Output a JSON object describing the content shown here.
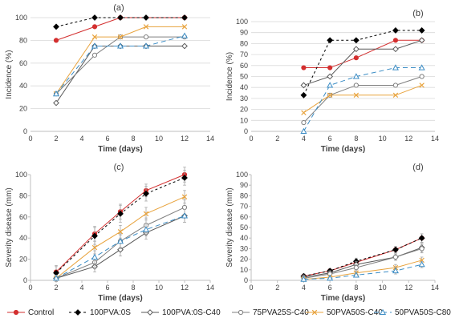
{
  "series_styles": [
    {
      "name": "Control",
      "color": "#d32f2f",
      "dash": "",
      "marker": "circle-filled"
    },
    {
      "name": "100PVA:0S",
      "color": "#000000",
      "dash": "3,3",
      "marker": "diamond-filled"
    },
    {
      "name": "100PVA:0S-C40",
      "color": "#595959",
      "dash": "",
      "marker": "diamond-open"
    },
    {
      "name": "75PVA25S-C40",
      "color": "#7f7f7f",
      "dash": "",
      "marker": "circle-open"
    },
    {
      "name": "50PVA50S-C40",
      "color": "#e8a33d",
      "dash": "",
      "marker": "x"
    },
    {
      "name": "50PVA50S-C80",
      "color": "#3c8dc5",
      "dash": "6,4",
      "marker": "triangle-open"
    }
  ],
  "chart_data": [
    {
      "type": "line",
      "label": "(a)",
      "xlabel": "Time (days)",
      "ylabel": "Incidence (%)",
      "xlim": [
        0,
        14
      ],
      "ylim": [
        0,
        100
      ],
      "xticks": [
        0,
        2,
        4,
        6,
        8,
        10,
        12,
        14
      ],
      "yticks": [
        0,
        20,
        40,
        60,
        80,
        100
      ],
      "grid": "horizontal",
      "error_bars": false,
      "series": [
        {
          "name": "Control",
          "x": [
            2,
            5,
            7,
            12
          ],
          "y": [
            80,
            92,
            100,
            100
          ]
        },
        {
          "name": "100PVA:0S",
          "x": [
            2,
            5,
            7,
            9,
            12
          ],
          "y": [
            92,
            100,
            100,
            100,
            100
          ]
        },
        {
          "name": "100PVA:0S-C40",
          "x": [
            2,
            5,
            7,
            9,
            12
          ],
          "y": [
            25,
            75,
            75,
            75,
            75
          ]
        },
        {
          "name": "75PVA25S-C40",
          "x": [
            2,
            5,
            7,
            9,
            12
          ],
          "y": [
            33,
            67,
            83,
            83,
            83
          ]
        },
        {
          "name": "50PVA50S-C40",
          "x": [
            2,
            5,
            7,
            9,
            12
          ],
          "y": [
            33,
            83,
            83,
            92,
            92
          ]
        },
        {
          "name": "50PVA50S-C80",
          "x": [
            2,
            5,
            7,
            9,
            12
          ],
          "y": [
            33,
            75,
            75,
            75,
            84
          ]
        }
      ]
    },
    {
      "type": "line",
      "label": "(b)",
      "xlabel": "Time (days)",
      "ylabel": "Incidence (%)",
      "xlim": [
        0,
        14
      ],
      "ylim": [
        0,
        100
      ],
      "xticks": [
        0,
        2,
        4,
        6,
        8,
        10,
        12,
        14
      ],
      "yticks": [
        0,
        10,
        20,
        30,
        40,
        50,
        60,
        70,
        80,
        90,
        100
      ],
      "grid": "horizontal",
      "error_bars": false,
      "series": [
        {
          "name": "Control",
          "x": [
            4,
            6,
            8,
            11,
            13
          ],
          "y": [
            58,
            58,
            67,
            83,
            83
          ]
        },
        {
          "name": "100PVA:0S",
          "x": [
            4,
            6,
            8,
            11,
            13
          ],
          "y": [
            33,
            83,
            83,
            92,
            92
          ]
        },
        {
          "name": "100PVA:0S-C40",
          "x": [
            4,
            6,
            8,
            11,
            13
          ],
          "y": [
            42,
            50,
            75,
            75,
            83
          ]
        },
        {
          "name": "75PVA25S-C40",
          "x": [
            4,
            6,
            8,
            11,
            13
          ],
          "y": [
            8,
            33,
            42,
            42,
            50
          ]
        },
        {
          "name": "50PVA50S-C40",
          "x": [
            4,
            6,
            8,
            11,
            13
          ],
          "y": [
            17,
            33,
            33,
            33,
            42
          ]
        },
        {
          "name": "50PVA50S-C80",
          "x": [
            4,
            6,
            8,
            11,
            13
          ],
          "y": [
            0,
            42,
            50,
            58,
            58
          ]
        }
      ]
    },
    {
      "type": "line",
      "label": "(c)",
      "xlabel": "Time (days)",
      "ylabel": "Severity disease (mm)",
      "xlim": [
        0,
        14
      ],
      "ylim": [
        0,
        100
      ],
      "xticks": [
        0,
        2,
        4,
        6,
        8,
        10,
        12,
        14
      ],
      "yticks": [
        0,
        20,
        40,
        60,
        80,
        100
      ],
      "grid": "none",
      "error_bars": true,
      "series": [
        {
          "name": "Control",
          "x": [
            2,
            5,
            7,
            9,
            12
          ],
          "y": [
            8,
            44,
            65,
            85,
            100
          ],
          "err": [
            6,
            7,
            7,
            6,
            7
          ]
        },
        {
          "name": "100PVA:0S",
          "x": [
            2,
            5,
            7,
            9,
            12
          ],
          "y": [
            7,
            42,
            63,
            82,
            97
          ],
          "err": [
            6,
            8,
            8,
            7,
            7
          ]
        },
        {
          "name": "100PVA:0S-C40",
          "x": [
            2,
            5,
            7,
            9,
            12
          ],
          "y": [
            2,
            13,
            29,
            45,
            61
          ],
          "err": [
            3,
            5,
            6,
            6,
            6
          ]
        },
        {
          "name": "75PVA25S-C40",
          "x": [
            2,
            5,
            7,
            9,
            12
          ],
          "y": [
            2,
            17,
            37,
            52,
            69
          ],
          "err": [
            3,
            6,
            7,
            7,
            7
          ]
        },
        {
          "name": "50PVA50S-C40",
          "x": [
            2,
            5,
            7,
            9,
            12
          ],
          "y": [
            2,
            31,
            46,
            63,
            79
          ],
          "err": [
            3,
            6,
            6,
            6,
            6
          ]
        },
        {
          "name": "50PVA50S-C80",
          "x": [
            2,
            5,
            7,
            9,
            12
          ],
          "y": [
            2,
            22,
            37,
            48,
            61
          ],
          "err": [
            3,
            6,
            6,
            6,
            6
          ]
        }
      ]
    },
    {
      "type": "line",
      "label": "(d)",
      "xlabel": "Time (days)",
      "ylabel": "Severity disease (mm)",
      "xlim": [
        0,
        14
      ],
      "ylim": [
        0,
        100
      ],
      "xticks": [
        0,
        2,
        4,
        6,
        8,
        10,
        12,
        14
      ],
      "yticks": [
        0,
        10,
        20,
        30,
        40,
        50,
        60,
        70,
        80,
        90,
        100
      ],
      "grid": "none",
      "error_bars": true,
      "series": [
        {
          "name": "Control",
          "x": [
            4,
            6,
            8,
            11,
            13
          ],
          "y": [
            4,
            9,
            17,
            29,
            40
          ],
          "err": [
            2,
            2,
            3,
            3,
            4
          ]
        },
        {
          "name": "100PVA:0S",
          "x": [
            4,
            6,
            8,
            11,
            13
          ],
          "y": [
            4,
            9,
            18,
            29,
            40
          ],
          "err": [
            2,
            2,
            3,
            3,
            4
          ]
        },
        {
          "name": "100PVA:0S-C40",
          "x": [
            4,
            6,
            8,
            11,
            13
          ],
          "y": [
            3,
            7,
            15,
            22,
            31
          ],
          "err": [
            2,
            2,
            3,
            3,
            4
          ]
        },
        {
          "name": "75PVA25S-C40",
          "x": [
            4,
            6,
            8,
            11,
            13
          ],
          "y": [
            2,
            6,
            12,
            22,
            30
          ],
          "err": [
            2,
            2,
            3,
            3,
            4
          ]
        },
        {
          "name": "50PVA50S-C40",
          "x": [
            4,
            6,
            8,
            11,
            13
          ],
          "y": [
            1,
            3,
            7,
            12,
            19
          ],
          "err": [
            1,
            2,
            2,
            3,
            3
          ]
        },
        {
          "name": "50PVA50S-C80",
          "x": [
            4,
            6,
            8,
            11,
            13
          ],
          "y": [
            1,
            2,
            5,
            9,
            15
          ],
          "err": [
            1,
            2,
            2,
            3,
            3
          ]
        }
      ]
    }
  ]
}
